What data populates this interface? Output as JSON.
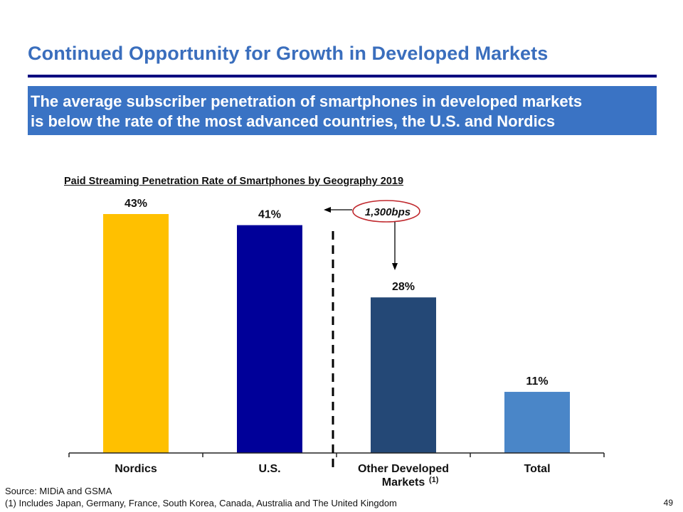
{
  "slide": {
    "title": "Continued Opportunity for Growth in Developed Markets",
    "banner_line1": "The average subscriber penetration of smartphones in developed markets",
    "banner_line2": "is below the rate of the most advanced countries, the U.S. and Nordics",
    "source": "Source: MIDiA and GSMA",
    "footnote": "(1) Includes Japan, Germany, France, South Korea, Canada, Australia and The United Kingdom",
    "page_number": "49"
  },
  "chart_data": {
    "type": "bar",
    "title": "Paid Streaming Penetration Rate of Smartphones by Geography 2019",
    "categories": [
      "Nordics",
      "U.S.",
      "Other Developed Markets",
      "Total"
    ],
    "category_superscripts": [
      "",
      "",
      "(1)",
      ""
    ],
    "values": [
      43,
      41,
      28,
      11
    ],
    "data_labels": [
      "43%",
      "41%",
      "28%",
      "11%"
    ],
    "colors": [
      "#ffc000",
      "#000099",
      "#244876",
      "#4a86c8"
    ],
    "xlabel": "",
    "ylabel": "",
    "ylim": [
      0,
      45
    ],
    "grid": false,
    "annotation": {
      "text": "1,300bps",
      "circle_color": "#c0282d",
      "arrow_from": "Other Developed Markets",
      "arrow_to": "U.S."
    },
    "divider": "dashed line between U.S. and Other Developed Markets"
  }
}
